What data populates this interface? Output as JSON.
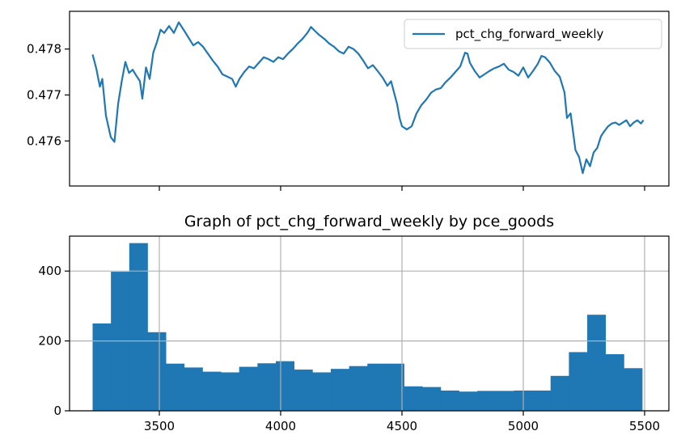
{
  "chart_data": [
    {
      "type": "line",
      "title": "",
      "xlabel": "",
      "ylabel": "",
      "grid": false,
      "legend": "top-right",
      "xlim": [
        3130,
        5600
      ],
      "ylim": [
        0.47502,
        0.47882
      ],
      "yticks": [
        0.476,
        0.477,
        0.478
      ],
      "ytick_labels": [
        "0.476",
        "0.477",
        "0.478"
      ],
      "xticks": [
        3500,
        4000,
        4500,
        5000,
        5500
      ],
      "xtick_labels_visible": false,
      "color": "#1f77b4",
      "series": [
        {
          "name": "pct_chg_forward_weekly",
          "points": [
            [
              3225,
              0.47788
            ],
            [
              3240,
              0.47758
            ],
            [
              3255,
              0.47718
            ],
            [
              3265,
              0.47735
            ],
            [
              3280,
              0.47655
            ],
            [
              3300,
              0.47608
            ],
            [
              3315,
              0.47598
            ],
            [
              3330,
              0.4768
            ],
            [
              3345,
              0.4773
            ],
            [
              3360,
              0.47772
            ],
            [
              3375,
              0.47748
            ],
            [
              3390,
              0.47755
            ],
            [
              3405,
              0.47742
            ],
            [
              3420,
              0.4773
            ],
            [
              3430,
              0.47692
            ],
            [
              3445,
              0.4776
            ],
            [
              3460,
              0.47735
            ],
            [
              3475,
              0.47792
            ],
            [
              3490,
              0.47815
            ],
            [
              3505,
              0.47842
            ],
            [
              3520,
              0.47835
            ],
            [
              3540,
              0.4785
            ],
            [
              3560,
              0.47835
            ],
            [
              3580,
              0.47858
            ],
            [
              3600,
              0.47842
            ],
            [
              3620,
              0.47825
            ],
            [
              3640,
              0.47808
            ],
            [
              3660,
              0.47815
            ],
            [
              3680,
              0.47805
            ],
            [
              3700,
              0.4779
            ],
            [
              3720,
              0.47775
            ],
            [
              3740,
              0.47762
            ],
            [
              3760,
              0.47745
            ],
            [
              3780,
              0.4774
            ],
            [
              3800,
              0.47735
            ],
            [
              3815,
              0.47718
            ],
            [
              3830,
              0.47735
            ],
            [
              3850,
              0.4775
            ],
            [
              3870,
              0.47762
            ],
            [
              3890,
              0.47758
            ],
            [
              3910,
              0.4777
            ],
            [
              3930,
              0.47782
            ],
            [
              3950,
              0.47778
            ],
            [
              3970,
              0.47772
            ],
            [
              3990,
              0.47782
            ],
            [
              4010,
              0.47778
            ],
            [
              4030,
              0.4779
            ],
            [
              4050,
              0.478
            ],
            [
              4070,
              0.47812
            ],
            [
              4090,
              0.47822
            ],
            [
              4110,
              0.47835
            ],
            [
              4125,
              0.47848
            ],
            [
              4140,
              0.4784
            ],
            [
              4160,
              0.4783
            ],
            [
              4180,
              0.47822
            ],
            [
              4200,
              0.47812
            ],
            [
              4220,
              0.47805
            ],
            [
              4240,
              0.47795
            ],
            [
              4260,
              0.4779
            ],
            [
              4280,
              0.47805
            ],
            [
              4300,
              0.478
            ],
            [
              4320,
              0.4779
            ],
            [
              4340,
              0.47775
            ],
            [
              4360,
              0.47758
            ],
            [
              4380,
              0.47765
            ],
            [
              4400,
              0.47752
            ],
            [
              4420,
              0.47738
            ],
            [
              4440,
              0.4772
            ],
            [
              4455,
              0.4773
            ],
            [
              4470,
              0.477
            ],
            [
              4480,
              0.4768
            ],
            [
              4490,
              0.4765
            ],
            [
              4500,
              0.47632
            ],
            [
              4520,
              0.47625
            ],
            [
              4540,
              0.47632
            ],
            [
              4560,
              0.4766
            ],
            [
              4580,
              0.47678
            ],
            [
              4600,
              0.4769
            ],
            [
              4620,
              0.47705
            ],
            [
              4640,
              0.47712
            ],
            [
              4660,
              0.47715
            ],
            [
              4680,
              0.47728
            ],
            [
              4700,
              0.47738
            ],
            [
              4720,
              0.4775
            ],
            [
              4740,
              0.47762
            ],
            [
              4760,
              0.47792
            ],
            [
              4770,
              0.4779
            ],
            [
              4780,
              0.4777
            ],
            [
              4800,
              0.47752
            ],
            [
              4820,
              0.47738
            ],
            [
              4840,
              0.47745
            ],
            [
              4860,
              0.47752
            ],
            [
              4880,
              0.47758
            ],
            [
              4900,
              0.47762
            ],
            [
              4920,
              0.47768
            ],
            [
              4940,
              0.47755
            ],
            [
              4960,
              0.4775
            ],
            [
              4980,
              0.47742
            ],
            [
              5000,
              0.4776
            ],
            [
              5020,
              0.47738
            ],
            [
              5040,
              0.47752
            ],
            [
              5060,
              0.47768
            ],
            [
              5075,
              0.47785
            ],
            [
              5090,
              0.47782
            ],
            [
              5110,
              0.4777
            ],
            [
              5130,
              0.47752
            ],
            [
              5150,
              0.4774
            ],
            [
              5170,
              0.47705
            ],
            [
              5180,
              0.4765
            ],
            [
              5195,
              0.4766
            ],
            [
              5205,
              0.4762
            ],
            [
              5215,
              0.4758
            ],
            [
              5230,
              0.47565
            ],
            [
              5245,
              0.4753
            ],
            [
              5260,
              0.4756
            ],
            [
              5275,
              0.47545
            ],
            [
              5290,
              0.47575
            ],
            [
              5305,
              0.47585
            ],
            [
              5320,
              0.4761
            ],
            [
              5335,
              0.47622
            ],
            [
              5350,
              0.47632
            ],
            [
              5365,
              0.47638
            ],
            [
              5380,
              0.4764
            ],
            [
              5395,
              0.47635
            ],
            [
              5410,
              0.4764
            ],
            [
              5425,
              0.47645
            ],
            [
              5440,
              0.47632
            ],
            [
              5455,
              0.4764
            ],
            [
              5470,
              0.47645
            ],
            [
              5485,
              0.47638
            ],
            [
              5495,
              0.47645
            ]
          ]
        }
      ]
    },
    {
      "type": "bar",
      "subtype": "histogram",
      "title": "Graph of pct_chg_forward_weekly by pce_goods",
      "xlabel": "",
      "ylabel": "",
      "grid": true,
      "xlim": [
        3130,
        5600
      ],
      "ylim": [
        0,
        500
      ],
      "yticks": [
        0,
        200,
        400
      ],
      "ytick_labels": [
        "0",
        "200",
        "400"
      ],
      "xticks": [
        3500,
        4000,
        4500,
        5000,
        5500
      ],
      "xtick_labels": [
        "3500",
        "4000",
        "4500",
        "5000",
        "5500"
      ],
      "color": "#1f77b4",
      "bin_start": 3225,
      "bin_width": 75.5,
      "values": [
        250,
        398,
        480,
        225,
        135,
        124,
        112,
        110,
        126,
        136,
        142,
        118,
        110,
        120,
        128,
        135,
        135,
        70,
        68,
        58,
        55,
        57,
        57,
        58,
        58,
        100,
        168,
        275,
        162,
        122
      ]
    }
  ]
}
